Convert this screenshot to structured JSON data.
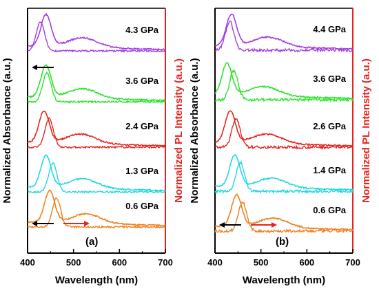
{
  "chart_data": [
    {
      "type": "line",
      "panel_label": "(a)",
      "xlabel": "Wavelength (nm)",
      "ylabel_left": "Normalized Absorbance (a.u.)",
      "ylabel_right": "Normalized PL Intensity (a.u.)",
      "xlim": [
        400,
        700
      ],
      "xticks": [
        "400",
        "500",
        "600",
        "700"
      ],
      "series": [
        {
          "name": "0.6 GPa",
          "color": "#F07F1E",
          "absorbance_peak_nm": 448,
          "pl_peak_nm": 463
        },
        {
          "name": "1.3 GPa",
          "color": "#22D8E0",
          "absorbance_peak_nm": 440,
          "pl_peak_nm": 455
        },
        {
          "name": "2.4 GPa",
          "color": "#E8231E",
          "absorbance_peak_nm": 436,
          "pl_peak_nm": 447
        },
        {
          "name": "3.6 GPa",
          "color": "#2BE42B",
          "absorbance_peak_nm": 440,
          "pl_peak_nm": 442
        },
        {
          "name": "4.3 GPa",
          "color": "#A23DE0",
          "absorbance_peak_nm": 440,
          "pl_peak_nm": 428
        }
      ]
    },
    {
      "type": "line",
      "panel_label": "(b)",
      "xlabel": "Wavelength (nm)",
      "ylabel_left": "Normalized Absorbance (a.u.)",
      "ylabel_right": "Normalized PL Intensity (a.u.)",
      "xlim": [
        400,
        700
      ],
      "xticks": [
        "400",
        "500",
        "600",
        "700"
      ],
      "series": [
        {
          "name": "0.6 GPa",
          "color": "#F07F1E",
          "absorbance_peak_nm": 447,
          "pl_peak_nm": 460
        },
        {
          "name": "1.4 GPa",
          "color": "#22D8E0",
          "absorbance_peak_nm": 443,
          "pl_peak_nm": 455
        },
        {
          "name": "2.6 GPa",
          "color": "#E8231E",
          "absorbance_peak_nm": 433,
          "pl_peak_nm": 446
        },
        {
          "name": "3.6 GPa",
          "color": "#2BE42B",
          "absorbance_peak_nm": 426,
          "pl_peak_nm": 441
        },
        {
          "name": "4.4 GPa",
          "color": "#A23DE0",
          "absorbance_peak_nm": 436,
          "pl_peak_nm": 432
        }
      ]
    }
  ]
}
